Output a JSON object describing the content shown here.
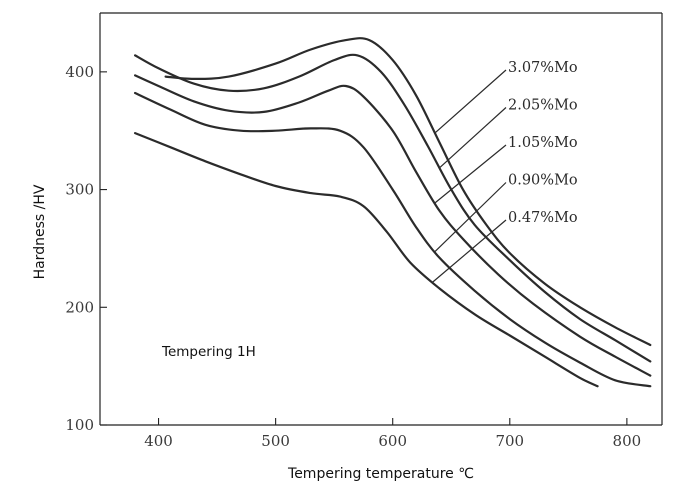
{
  "chart_data": {
    "type": "line",
    "title": "",
    "xlabel": "Tempering temperature ℃",
    "ylabel": "Hardness /HV",
    "xlim": [
      350,
      830
    ],
    "ylim": [
      100,
      450
    ],
    "x_ticks": [
      400,
      500,
      600,
      700,
      800
    ],
    "y_ticks": [
      100,
      200,
      300,
      400
    ],
    "annotation": "Tempering 1H",
    "grid": false,
    "legend_placement": "right, leader lines to curves",
    "series": [
      {
        "name": "3.07%Mo",
        "points": [
          [
            406,
            396
          ],
          [
            430,
            394
          ],
          [
            460,
            396
          ],
          [
            500,
            407
          ],
          [
            530,
            419
          ],
          [
            560,
            427
          ],
          [
            580,
            427
          ],
          [
            600,
            410
          ],
          [
            620,
            380
          ],
          [
            640,
            340
          ],
          [
            660,
            300
          ],
          [
            680,
            270
          ],
          [
            700,
            246
          ],
          [
            730,
            220
          ],
          [
            760,
            200
          ],
          [
            790,
            183
          ],
          [
            820,
            168
          ]
        ]
      },
      {
        "name": "2.05%Mo",
        "points": [
          [
            380,
            414
          ],
          [
            400,
            403
          ],
          [
            430,
            390
          ],
          [
            460,
            384
          ],
          [
            490,
            386
          ],
          [
            520,
            396
          ],
          [
            550,
            410
          ],
          [
            570,
            414
          ],
          [
            590,
            400
          ],
          [
            610,
            372
          ],
          [
            630,
            337
          ],
          [
            650,
            300
          ],
          [
            670,
            270
          ],
          [
            700,
            240
          ],
          [
            730,
            213
          ],
          [
            760,
            190
          ],
          [
            790,
            172
          ],
          [
            820,
            154
          ]
        ]
      },
      {
        "name": "1.05%Mo",
        "points": [
          [
            380,
            397
          ],
          [
            400,
            388
          ],
          [
            430,
            375
          ],
          [
            460,
            367
          ],
          [
            490,
            366
          ],
          [
            520,
            374
          ],
          [
            545,
            384
          ],
          [
            560,
            388
          ],
          [
            575,
            379
          ],
          [
            600,
            350
          ],
          [
            620,
            315
          ],
          [
            640,
            282
          ],
          [
            660,
            258
          ],
          [
            690,
            228
          ],
          [
            720,
            203
          ],
          [
            760,
            175
          ],
          [
            790,
            158
          ],
          [
            820,
            142
          ]
        ]
      },
      {
        "name": "0.90%Mo",
        "points": [
          [
            380,
            382
          ],
          [
            410,
            368
          ],
          [
            440,
            355
          ],
          [
            470,
            350
          ],
          [
            500,
            350
          ],
          [
            530,
            352
          ],
          [
            555,
            350
          ],
          [
            575,
            336
          ],
          [
            600,
            300
          ],
          [
            620,
            268
          ],
          [
            640,
            242
          ],
          [
            670,
            214
          ],
          [
            700,
            190
          ],
          [
            730,
            170
          ],
          [
            760,
            153
          ],
          [
            790,
            138
          ],
          [
            820,
            133
          ]
        ]
      },
      {
        "name": "0.47%Mo",
        "points": [
          [
            380,
            348
          ],
          [
            410,
            336
          ],
          [
            440,
            324
          ],
          [
            470,
            313
          ],
          [
            500,
            303
          ],
          [
            530,
            297
          ],
          [
            555,
            294
          ],
          [
            575,
            286
          ],
          [
            595,
            264
          ],
          [
            615,
            238
          ],
          [
            640,
            216
          ],
          [
            670,
            194
          ],
          [
            700,
            176
          ],
          [
            730,
            158
          ],
          [
            760,
            140
          ],
          [
            775,
            133
          ]
        ]
      }
    ]
  }
}
